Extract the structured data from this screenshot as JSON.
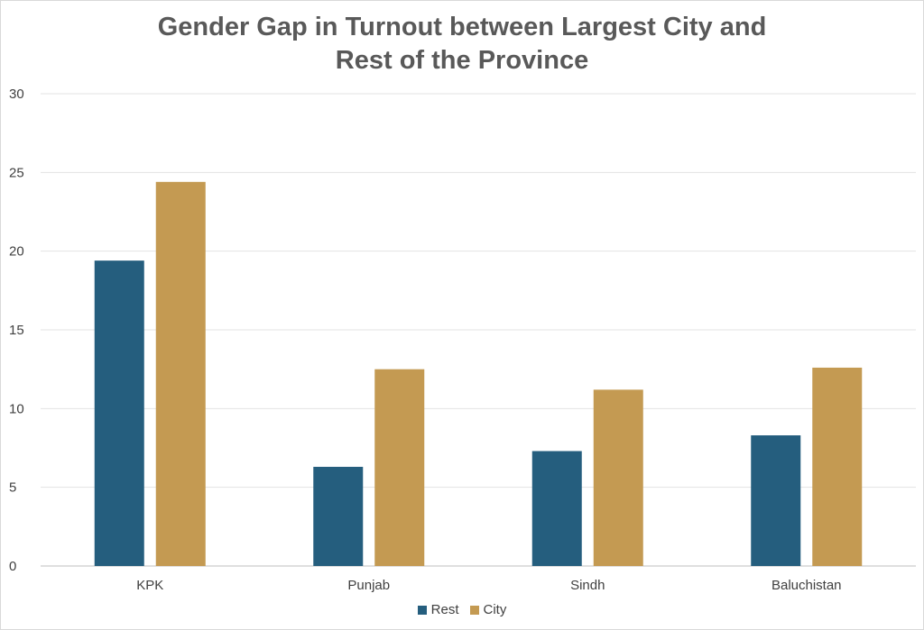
{
  "chart_data": {
    "type": "bar",
    "title": [
      "Gender Gap in Turnout between Largest City and",
      "Rest of the Province"
    ],
    "xlabel": "",
    "ylabel": "",
    "categories": [
      "KPK",
      "Punjab",
      "Sindh",
      "Baluchistan"
    ],
    "series": [
      {
        "name": "Rest",
        "color": "#255e7e",
        "values": [
          19.4,
          6.3,
          7.3,
          8.3
        ]
      },
      {
        "name": "City",
        "color": "#c49a52",
        "values": [
          24.4,
          12.5,
          11.2,
          12.6
        ]
      }
    ],
    "ylim": [
      0,
      30
    ],
    "yticks": [
      "0",
      "5",
      "10",
      "15",
      "20",
      "25",
      "30"
    ],
    "grid": true,
    "legend_position": "bottom"
  }
}
